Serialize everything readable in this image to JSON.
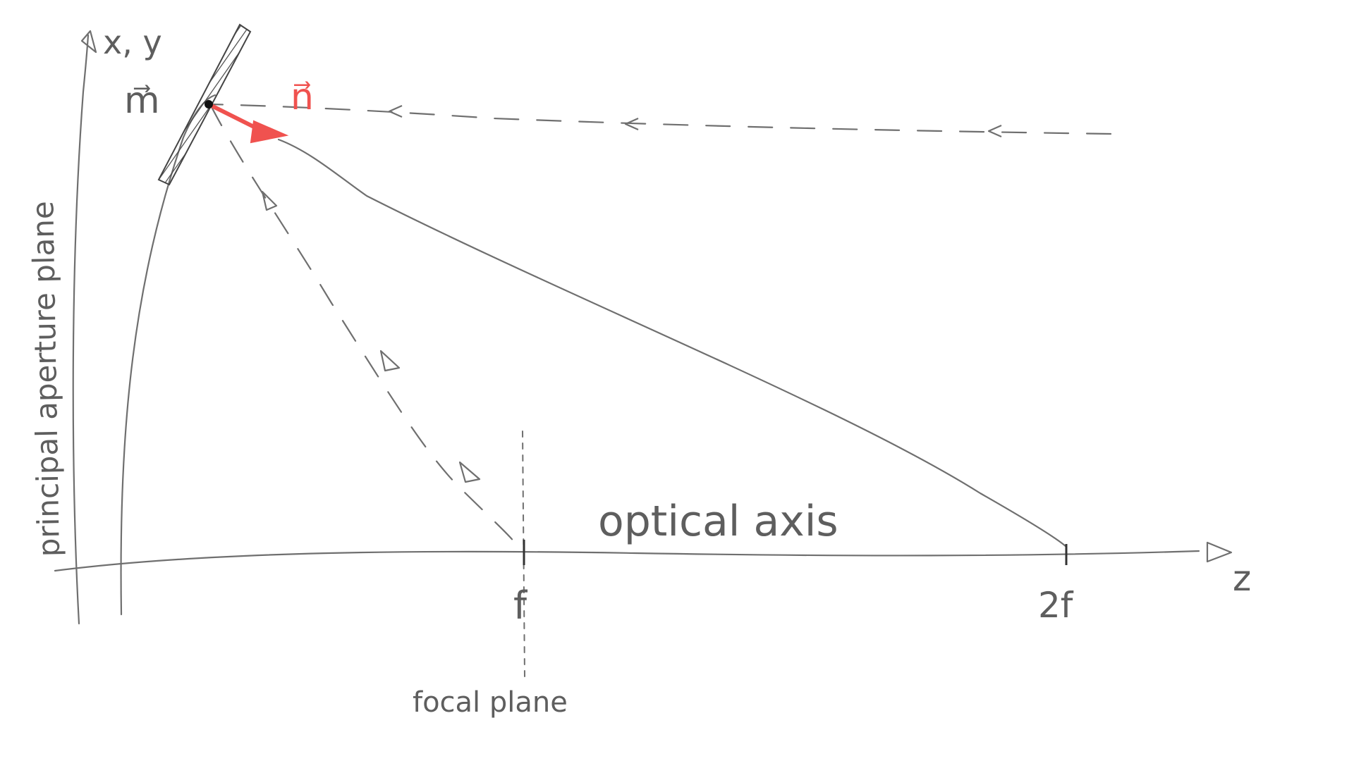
{
  "labels": {
    "xy_axis": "x, y",
    "mirror_vector": "m⃗",
    "normal_vector": "n⃗",
    "aperture_plane": "principal aperture plane",
    "optical_axis": "optical axis",
    "z_axis": "z",
    "focal_tick": "f",
    "double_focal_tick": "2f",
    "focal_plane": "focal plane"
  },
  "colors": {
    "ink": "#6f6f6f",
    "normal_vector": "#f0524f",
    "hatch": "#444444"
  }
}
